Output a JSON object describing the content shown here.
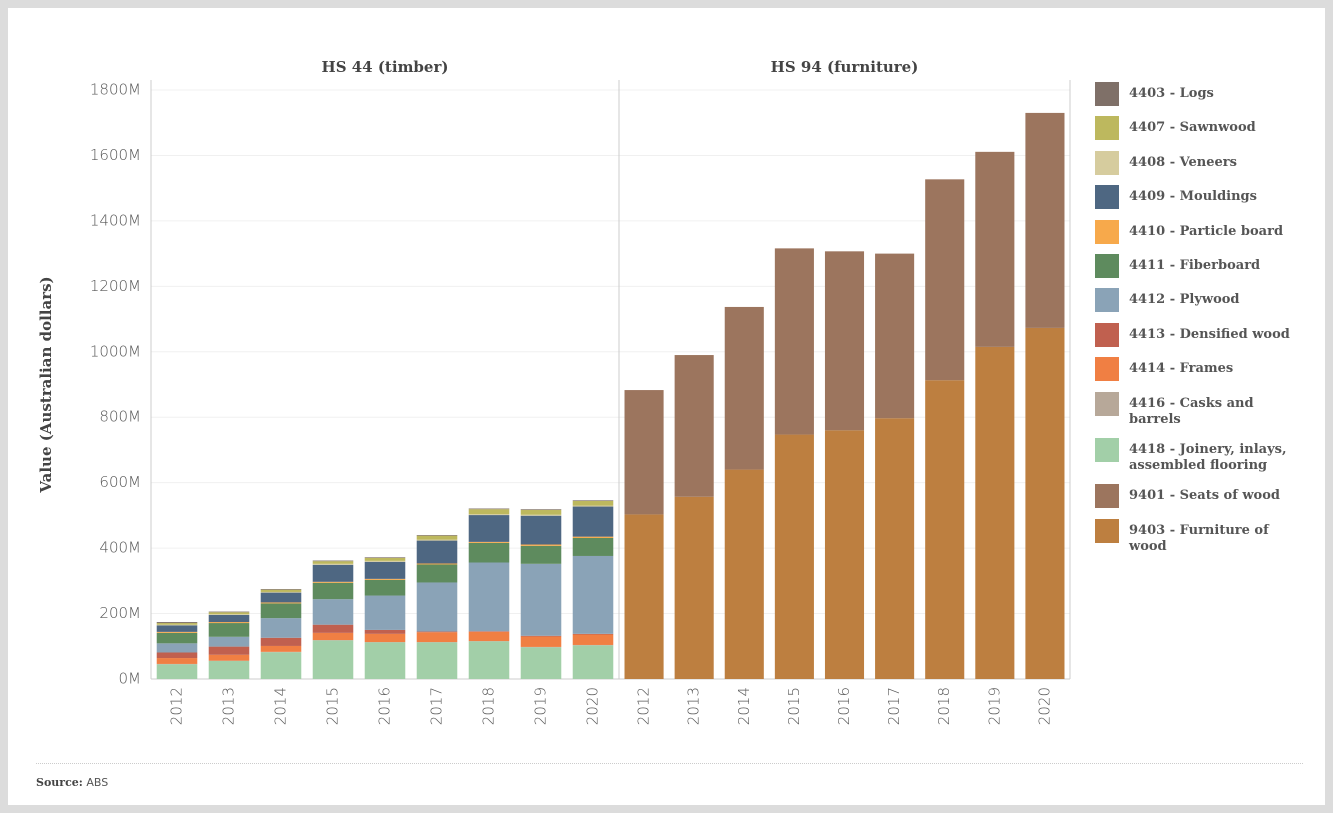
{
  "chart_data": {
    "type": "bar",
    "stacked": true,
    "ylabel": "Value (Australian dollars)",
    "ylim": [
      0,
      1800
    ],
    "yticks": [
      {
        "value": 0,
        "label": "0M"
      },
      {
        "value": 200,
        "label": "200M"
      },
      {
        "value": 400,
        "label": "400M"
      },
      {
        "value": 600,
        "label": "600M"
      },
      {
        "value": 800,
        "label": "800M"
      },
      {
        "value": 1000,
        "label": "1000M"
      },
      {
        "value": 1200,
        "label": "1200M"
      },
      {
        "value": 1400,
        "label": "1400M"
      },
      {
        "value": 1600,
        "label": "1600M"
      },
      {
        "value": 1800,
        "label": "1800M"
      }
    ],
    "grid": true,
    "legend": "right",
    "panels": [
      {
        "title": "HS 44 (timber)",
        "categories": [
          "2012",
          "2013",
          "2014",
          "2015",
          "2016",
          "2017",
          "2018",
          "2019",
          "2020"
        ],
        "series": [
          {
            "name": "4403 - Logs",
            "color": "#7f7068",
            "values": [
              3,
              2,
              2,
              2,
              2,
              2,
              2,
              2,
              2
            ]
          },
          {
            "name": "4407 - Sawnwood",
            "color": "#bdb85e",
            "values": [
              5,
              6,
              7,
              8,
              9,
              12,
              15,
              15,
              14
            ]
          },
          {
            "name": "4408 - Veneers",
            "color": "#d6cc9e",
            "values": [
              2,
              2,
              2,
              3,
              3,
              3,
              3,
              3,
              3
            ]
          },
          {
            "name": "4409 - Mouldings",
            "color": "#4e6782",
            "values": [
              20,
              22,
              30,
              52,
              52,
              70,
              82,
              88,
              92
            ]
          },
          {
            "name": "4410 - Particle board",
            "color": "#f7a94b",
            "values": [
              3,
              3,
              3,
              3,
              3,
              3,
              3,
              4,
              4
            ]
          },
          {
            "name": "4411 - Fiberboard",
            "color": "#5e8b5e",
            "values": [
              32,
              42,
              45,
              50,
              48,
              55,
              60,
              55,
              55
            ]
          },
          {
            "name": "4412 - Plywood",
            "color": "#8aa3b7",
            "values": [
              28,
              30,
              60,
              78,
              105,
              150,
              210,
              220,
              238
            ]
          },
          {
            "name": "4413 - Densified wood",
            "color": "#c0604f",
            "values": [
              17,
              25,
              25,
              25,
              12,
              2,
              2,
              2,
              2
            ]
          },
          {
            "name": "4414 - Frames",
            "color": "#f07f43",
            "values": [
              18,
              18,
              18,
              22,
              25,
              30,
              28,
              32,
              32
            ]
          },
          {
            "name": "4416 - Casks and barrels",
            "color": "#b7a899",
            "values": [
              1,
              1,
              1,
              1,
              1,
              1,
              1,
              1,
              1
            ]
          },
          {
            "name": "4418 - Joinery, inlays, assembled flooring",
            "color": "#a2cfa8",
            "values": [
              45,
              55,
              82,
              118,
              112,
              112,
              115,
              97,
              103
            ]
          }
        ]
      },
      {
        "title": "HS 94 (furniture)",
        "categories": [
          "2012",
          "2013",
          "2014",
          "2015",
          "2016",
          "2017",
          "2018",
          "2019",
          "2020"
        ],
        "series": [
          {
            "name": "9401 - Seats of wood",
            "color": "#9c755e",
            "values": [
              380,
              433,
              497,
              569,
              547,
              503,
              614,
              596,
              657
            ]
          },
          {
            "name": "9403 - Furniture of wood",
            "color": "#bd7f40",
            "values": [
              503,
              557,
              640,
              747,
              760,
              797,
              913,
              1015,
              1073
            ]
          }
        ]
      }
    ]
  },
  "source": {
    "label": "Source:",
    "text": "ABS"
  }
}
